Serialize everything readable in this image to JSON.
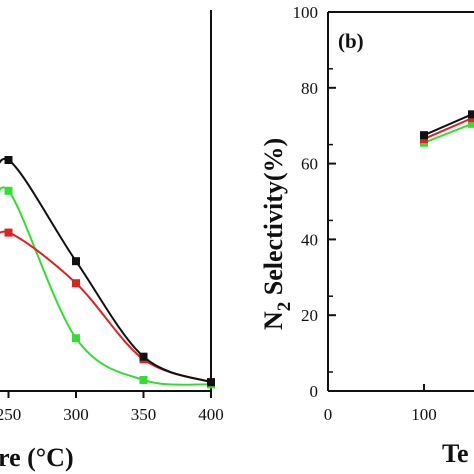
{
  "chart_data": [
    {
      "type": "line",
      "panel": "a",
      "xlabel": "Temperature (°C)",
      "xlabel_visible": "re (°C)",
      "xlim": [
        200,
        400
      ],
      "x_ticks": [
        "250",
        "300",
        "350",
        "400"
      ],
      "x_ticks_visible_label_first": "250",
      "series": [
        {
          "color": "#111111",
          "x": [
            250,
            300,
            350,
            400
          ],
          "y": [
            52.5,
            29.5,
            7.8,
            2.0
          ]
        },
        {
          "color": "#dd2222",
          "x": [
            250,
            300,
            350,
            400
          ],
          "y": [
            36.0,
            24.5,
            7.2,
            2.0
          ]
        },
        {
          "color": "#33dd33",
          "x": [
            250,
            300,
            350,
            400
          ],
          "y": [
            45.5,
            12.0,
            2.5,
            1.5
          ]
        }
      ]
    },
    {
      "type": "line",
      "panel": "b",
      "title": "(b)",
      "ylabel": "N2 Selectivity(%)",
      "ylabel_main": "N",
      "ylabel_sub": "2",
      "ylabel_rest": " Selectivity(%)",
      "xlabel_visible": "Te",
      "ylim": [
        0,
        100
      ],
      "y_ticks": [
        "0",
        "20",
        "40",
        "60",
        "80",
        "100"
      ],
      "x_ticks": [
        "0",
        "100"
      ],
      "series": [
        {
          "color": "#111111",
          "x": [
            100,
            150
          ],
          "y": [
            67.5,
            73.0
          ]
        },
        {
          "color": "#dd2222",
          "x": [
            100,
            150
          ],
          "y": [
            66.5,
            72.0
          ]
        },
        {
          "color": "#33dd33",
          "x": [
            100,
            150
          ],
          "y": [
            65.5,
            70.5
          ]
        }
      ]
    }
  ]
}
